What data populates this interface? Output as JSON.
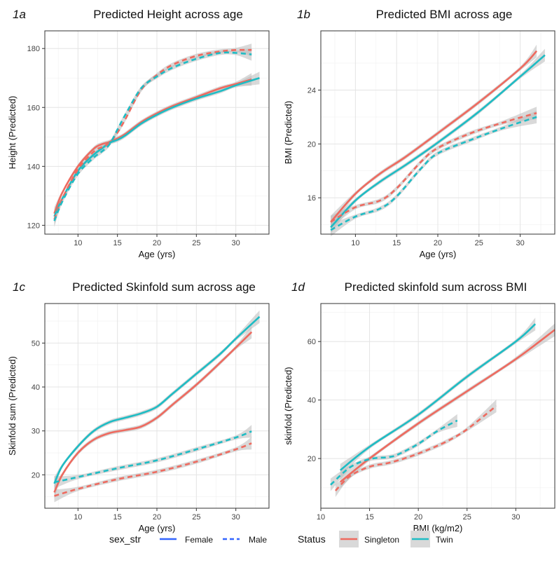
{
  "colors": {
    "singleton": "#ee6a5f",
    "twin": "#1ebcc4",
    "female": "#3366ff",
    "ribbon": "#b9b9b9"
  },
  "legend": {
    "sex_title": "sex_str",
    "sex_items": [
      {
        "label": "Female",
        "linetype": "solid"
      },
      {
        "label": "Male",
        "linetype": "dashed"
      }
    ],
    "status_title": "Status",
    "status_items": [
      {
        "label": "Singleton",
        "color": "#ee6a5f"
      },
      {
        "label": "Twin",
        "color": "#1ebcc4"
      }
    ]
  },
  "chart_data": [
    {
      "panel": "1a",
      "type": "line",
      "title": "Predicted Height across age",
      "xlabel": "Age (yrs)",
      "ylabel": "Height (Predicted)",
      "xlim": [
        5.8,
        34.2
      ],
      "ylim": [
        117,
        186
      ],
      "xticks": [
        10,
        15,
        20,
        25,
        30
      ],
      "yticks": [
        120,
        140,
        160,
        180
      ],
      "grid": true,
      "series": [
        {
          "sex": "Female",
          "status": "Singleton",
          "x": [
            7,
            8,
            10,
            12,
            13,
            14,
            15,
            16,
            18,
            20,
            22,
            25,
            28,
            30,
            32
          ],
          "y": [
            124,
            131,
            140,
            146,
            147.5,
            148.3,
            149.5,
            151,
            155,
            158,
            160.5,
            163.5,
            166.5,
            168,
            169.5
          ]
        },
        {
          "sex": "Female",
          "status": "Twin",
          "x": [
            7,
            8,
            10,
            12,
            13,
            14,
            15,
            16,
            18,
            20,
            22,
            25,
            28,
            30,
            33
          ],
          "y": [
            123,
            129,
            138.5,
            144,
            146,
            148,
            149,
            150.5,
            154.5,
            157.5,
            160,
            163,
            165.5,
            167.5,
            170
          ]
        },
        {
          "sex": "Male",
          "status": "Singleton",
          "x": [
            7,
            8,
            10,
            12,
            13,
            14,
            15,
            16,
            18,
            20,
            22,
            25,
            28,
            30,
            32
          ],
          "y": [
            122,
            129,
            139,
            145,
            146.5,
            148,
            151.5,
            156,
            166,
            171,
            174.5,
            177.5,
            179,
            179.5,
            179.5
          ]
        },
        {
          "sex": "Male",
          "status": "Twin",
          "x": [
            7,
            8,
            10,
            12,
            13,
            14,
            15,
            16,
            18,
            20,
            22,
            25,
            28,
            30,
            32
          ],
          "y": [
            121.5,
            128,
            137.5,
            143,
            145,
            147.5,
            152.5,
            157.5,
            166.5,
            170.5,
            173.5,
            176.5,
            178.5,
            178.5,
            178
          ]
        }
      ]
    },
    {
      "panel": "1b",
      "type": "line",
      "title": "Predicted BMI across age",
      "xlabel": "Age (yrs)",
      "ylabel": "BMI (Predicted)",
      "xlim": [
        5.8,
        34.2
      ],
      "ylim": [
        13.3,
        28.4
      ],
      "xticks": [
        10,
        15,
        20,
        25,
        30
      ],
      "yticks": [
        16,
        20,
        24
      ],
      "grid": true,
      "series": [
        {
          "sex": "Female",
          "status": "Singleton",
          "x": [
            7,
            10,
            13,
            16,
            20,
            25,
            30,
            32
          ],
          "y": [
            14.2,
            16.3,
            17.8,
            19,
            20.8,
            23.1,
            25.6,
            26.9
          ]
        },
        {
          "sex": "Female",
          "status": "Twin",
          "x": [
            7,
            10,
            13,
            16,
            20,
            25,
            30,
            33
          ],
          "y": [
            13.8,
            15.8,
            17.2,
            18.4,
            20.1,
            22.4,
            25,
            26.6
          ]
        },
        {
          "sex": "Male",
          "status": "Singleton",
          "x": [
            7,
            10,
            13,
            15,
            18,
            20,
            24,
            28,
            32
          ],
          "y": [
            14.2,
            15.3,
            15.8,
            16.7,
            18.7,
            19.7,
            20.8,
            21.6,
            22.3
          ]
        },
        {
          "sex": "Male",
          "status": "Twin",
          "x": [
            7,
            10,
            13,
            15,
            18,
            20,
            24,
            28,
            32
          ],
          "y": [
            13.6,
            14.6,
            15.2,
            16.1,
            18.2,
            19.3,
            20.3,
            21.2,
            22
          ]
        }
      ]
    },
    {
      "panel": "1c",
      "type": "line",
      "title": "Predicted Skinfold sum across age",
      "xlabel": "Age (yrs)",
      "ylabel": "Skinfold sum (Predicted)",
      "xlim": [
        5.8,
        34.2
      ],
      "ylim": [
        12.4,
        59
      ],
      "xticks": [
        10,
        15,
        20,
        25,
        30
      ],
      "yticks": [
        20,
        30,
        40,
        50
      ],
      "grid": true,
      "series": [
        {
          "sex": "Female",
          "status": "Singleton",
          "x": [
            7,
            8,
            10,
            12,
            14,
            16,
            18,
            20,
            22,
            25,
            28,
            30,
            32
          ],
          "y": [
            16,
            20,
            25,
            28,
            29.5,
            30.2,
            31,
            33,
            36,
            40.5,
            45.5,
            49,
            52.5
          ]
        },
        {
          "sex": "Female",
          "status": "Twin",
          "x": [
            7,
            8,
            10,
            12,
            14,
            16,
            18,
            20,
            22,
            25,
            28,
            30,
            33
          ],
          "y": [
            18,
            22,
            26.5,
            30,
            32,
            33,
            34,
            35.5,
            38.5,
            43,
            47.5,
            51,
            56
          ]
        },
        {
          "sex": "Male",
          "status": "Singleton",
          "x": [
            7,
            10,
            15,
            20,
            25,
            30,
            32
          ],
          "y": [
            15.2,
            16.8,
            19,
            20.7,
            23,
            25.8,
            27.2
          ]
        },
        {
          "sex": "Male",
          "status": "Twin",
          "x": [
            7,
            10,
            15,
            20,
            25,
            30,
            32
          ],
          "y": [
            18.3,
            19.5,
            21.5,
            23.3,
            25.8,
            28.5,
            29.9
          ]
        }
      ]
    },
    {
      "panel": "1d",
      "type": "line",
      "title": "Predicted skinfold sum across BMI",
      "xlabel": "BMI (kg/m2)",
      "ylabel": "skinfold (Predicted)",
      "xlim": [
        10,
        34
      ],
      "ylim": [
        3,
        73
      ],
      "xticks": [
        10,
        15,
        20,
        25,
        30
      ],
      "yticks": [
        20,
        40,
        60
      ],
      "grid": true,
      "series": [
        {
          "sex": "Female",
          "status": "Singleton",
          "x": [
            12,
            15,
            20,
            25,
            30,
            34
          ],
          "y": [
            12,
            20,
            32,
            43,
            54,
            64
          ]
        },
        {
          "sex": "Female",
          "status": "Twin",
          "x": [
            12,
            15,
            20,
            25,
            30,
            32
          ],
          "y": [
            16,
            24,
            35,
            48,
            60,
            66
          ]
        },
        {
          "sex": "Male",
          "status": "Singleton",
          "x": [
            11.5,
            13,
            15,
            17,
            19,
            21,
            23,
            25,
            28
          ],
          "y": [
            9,
            14,
            17.2,
            18.5,
            20.5,
            23,
            26,
            30,
            38
          ]
        },
        {
          "sex": "Male",
          "status": "Twin",
          "x": [
            11,
            13,
            15,
            17,
            18,
            20,
            22,
            24
          ],
          "y": [
            11,
            17,
            19.8,
            20.5,
            21.5,
            25,
            29.5,
            33
          ]
        }
      ]
    }
  ]
}
